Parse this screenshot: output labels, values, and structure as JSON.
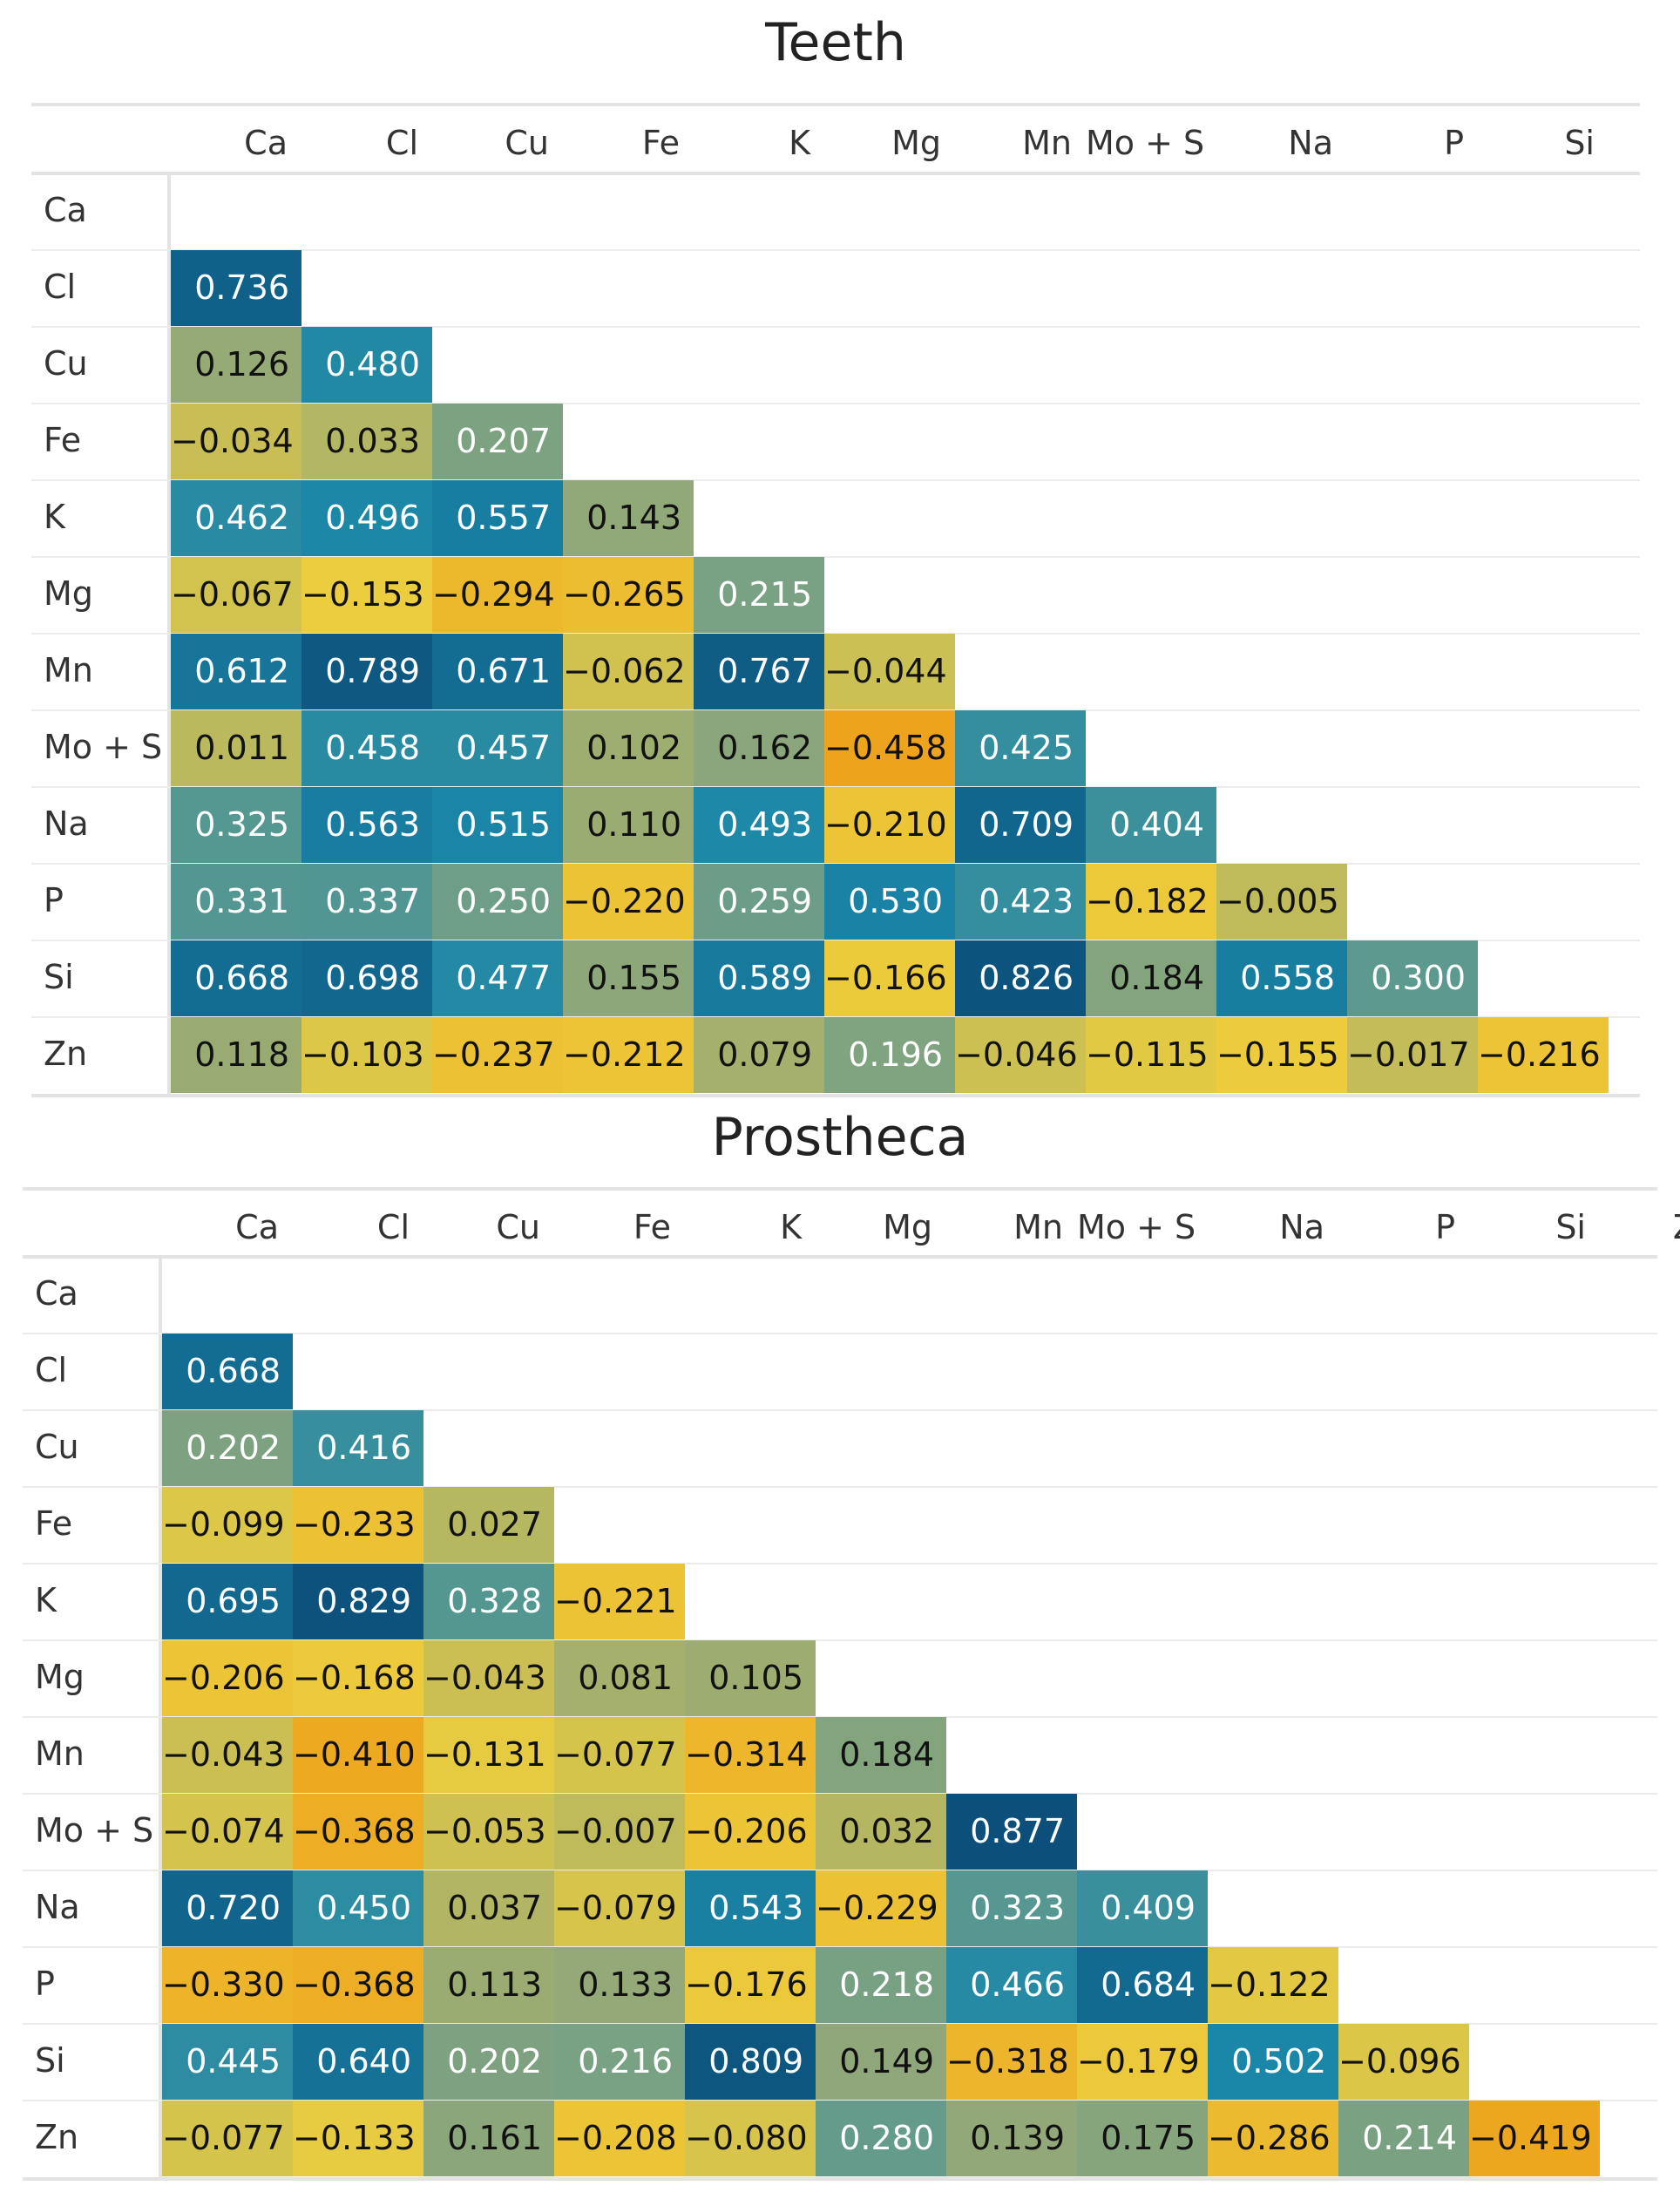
{
  "chart_data": [
    {
      "type": "heatmap",
      "title": "Teeth",
      "variables": [
        "Ca",
        "Cl",
        "Cu",
        "Fe",
        "K",
        "Mg",
        "Mn",
        "Mo + S",
        "Na",
        "P",
        "Si",
        "Zn"
      ],
      "colormap": [
        "#0b4f7a",
        "#1b87a8",
        "#8fa77a",
        "#eccd3d",
        "#eda31c"
      ],
      "lower_triangle": [
        [],
        [
          "0.736"
        ],
        [
          "0.126",
          "0.480"
        ],
        [
          "−0.034",
          "0.033",
          "0.207"
        ],
        [
          "0.462",
          "0.496",
          "0.557",
          "0.143"
        ],
        [
          "−0.067",
          "−0.153",
          "−0.294",
          "−0.265",
          "0.215"
        ],
        [
          "0.612",
          "0.789",
          "0.671",
          "−0.062",
          "0.767",
          "−0.044"
        ],
        [
          "0.011",
          "0.458",
          "0.457",
          "0.102",
          "0.162",
          "−0.458",
          "0.425"
        ],
        [
          "0.325",
          "0.563",
          "0.515",
          "0.110",
          "0.493",
          "−0.210",
          "0.709",
          "0.404"
        ],
        [
          "0.331",
          "0.337",
          "0.250",
          "−0.220",
          "0.259",
          "0.530",
          "0.423",
          "−0.182",
          "−0.005"
        ],
        [
          "0.668",
          "0.698",
          "0.477",
          "0.155",
          "0.589",
          "−0.166",
          "0.826",
          "0.184",
          "0.558",
          "0.300"
        ],
        [
          "0.118",
          "−0.103",
          "−0.237",
          "−0.212",
          "0.079",
          "0.196",
          "−0.046",
          "−0.115",
          "−0.155",
          "−0.017",
          "−0.216"
        ]
      ]
    },
    {
      "type": "heatmap",
      "title": "Prostheca",
      "variables": [
        "Ca",
        "Cl",
        "Cu",
        "Fe",
        "K",
        "Mg",
        "Mn",
        "Mo + S",
        "Na",
        "P",
        "Si",
        "Zn"
      ],
      "colormap": [
        "#0b4f7a",
        "#1b87a8",
        "#8fa77a",
        "#eccd3d",
        "#eda31c"
      ],
      "lower_triangle": [
        [],
        [
          "0.668"
        ],
        [
          "0.202",
          "0.416"
        ],
        [
          "−0.099",
          "−0.233",
          "0.027"
        ],
        [
          "0.695",
          "0.829",
          "0.328",
          "−0.221"
        ],
        [
          "−0.206",
          "−0.168",
          "−0.043",
          "0.081",
          "0.105"
        ],
        [
          "−0.043",
          "−0.410",
          "−0.131",
          "−0.077",
          "−0.314",
          "0.184"
        ],
        [
          "−0.074",
          "−0.368",
          "−0.053",
          "−0.007",
          "−0.206",
          "0.032",
          "0.877"
        ],
        [
          "0.720",
          "0.450",
          "0.037",
          "−0.079",
          "0.543",
          "−0.229",
          "0.323",
          "0.409"
        ],
        [
          "−0.330",
          "−0.368",
          "0.113",
          "0.133",
          "−0.176",
          "0.218",
          "0.466",
          "0.684",
          "−0.122"
        ],
        [
          "0.445",
          "0.640",
          "0.202",
          "0.216",
          "0.809",
          "0.149",
          "−0.318",
          "−0.179",
          "0.502",
          "−0.096"
        ],
        [
          "−0.077",
          "−0.133",
          "0.161",
          "−0.208",
          "−0.080",
          "0.280",
          "0.139",
          "0.175",
          "−0.286",
          "0.214",
          "−0.419"
        ]
      ]
    }
  ]
}
